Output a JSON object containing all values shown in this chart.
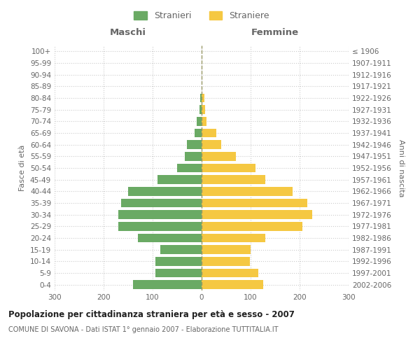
{
  "age_groups": [
    "100+",
    "95-99",
    "90-94",
    "85-89",
    "80-84",
    "75-79",
    "70-74",
    "65-69",
    "60-64",
    "55-59",
    "50-54",
    "45-49",
    "40-44",
    "35-39",
    "30-34",
    "25-29",
    "20-24",
    "15-19",
    "10-14",
    "5-9",
    "0-4"
  ],
  "birth_years": [
    "≤ 1906",
    "1907-1911",
    "1912-1916",
    "1917-1921",
    "1922-1926",
    "1927-1931",
    "1932-1936",
    "1937-1941",
    "1942-1946",
    "1947-1951",
    "1952-1956",
    "1957-1961",
    "1962-1966",
    "1967-1971",
    "1972-1976",
    "1977-1981",
    "1982-1986",
    "1987-1991",
    "1992-1996",
    "1997-2001",
    "2002-2006"
  ],
  "males": [
    0,
    0,
    0,
    0,
    3,
    5,
    10,
    15,
    30,
    35,
    50,
    90,
    150,
    165,
    170,
    170,
    130,
    85,
    95,
    95,
    140
  ],
  "females": [
    0,
    0,
    0,
    0,
    5,
    7,
    10,
    30,
    40,
    70,
    110,
    130,
    185,
    215,
    225,
    205,
    130,
    100,
    98,
    115,
    125
  ],
  "male_color": "#6aaa64",
  "female_color": "#f5c842",
  "male_label": "Stranieri",
  "female_label": "Straniere",
  "title": "Popolazione per cittadinanza straniera per età e sesso - 2007",
  "subtitle": "COMUNE DI SAVONA - Dati ISTAT 1° gennaio 2007 - Elaborazione TUTTITALIA.IT",
  "xlabel_left": "Maschi",
  "xlabel_right": "Femmine",
  "ylabel_left": "Fasce di età",
  "ylabel_right": "Anni di nascita",
  "xlim": 300,
  "background_color": "#ffffff",
  "grid_color": "#cccccc",
  "text_color": "#666666",
  "dashed_line_color": "#999966"
}
